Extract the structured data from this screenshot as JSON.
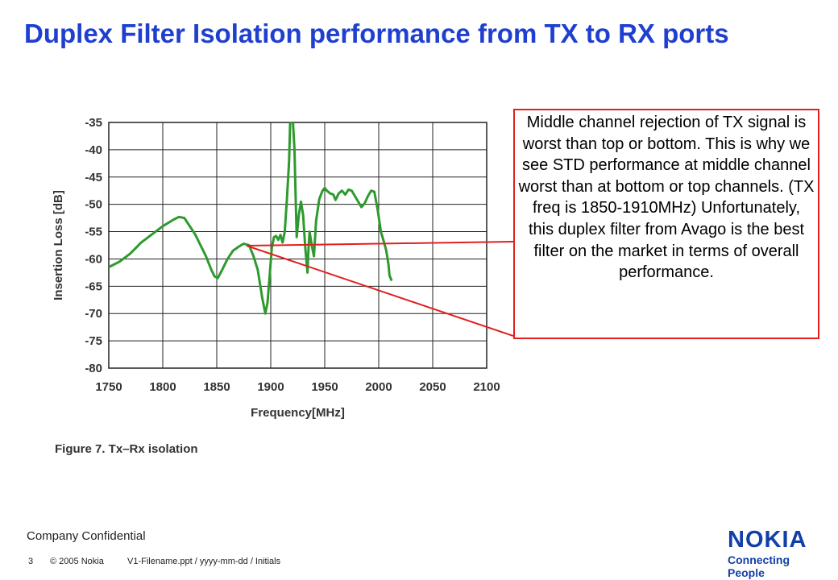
{
  "slide": {
    "title": "Duplex Filter Isolation performance from TX to RX ports",
    "callout": "Middle channel rejection of TX signal is worst than top or bottom. This is why we see STD performance at middle channel worst than at bottom or top channels. (TX freq is 1850-1910MHz) Unfortunately, this duplex filter from Avago is the best filter on the market in terms of overall performance."
  },
  "footer": {
    "confidential": "Company Confidential",
    "page_number": "3",
    "copyright": "© 2005  Nokia",
    "filename": "V1-Filename.ppt / yyyy-mm-dd / Initials"
  },
  "logo": {
    "brand": "NOKIA",
    "tagline": "Connecting People"
  },
  "colors": {
    "title": "#1f3fd1",
    "curve": "#2e9a2e",
    "callout_border": "#e21f1f",
    "brand": "#1340a7"
  },
  "chart_data": {
    "type": "line",
    "caption": "Figure 7. Tx–Rx isolation",
    "xlabel": "Frequency[MHz]",
    "ylabel": "Insertion Loss [dB]",
    "xlim": [
      1750,
      2100
    ],
    "ylim": [
      -80,
      -35
    ],
    "xticks": [
      1750,
      1800,
      1850,
      1900,
      1950,
      2000,
      2050,
      2100
    ],
    "yticks": [
      -35,
      -40,
      -45,
      -50,
      -55,
      -60,
      -65,
      -70,
      -75,
      -80
    ],
    "grid": true,
    "series": [
      {
        "x": [
          1750,
          1760,
          1770,
          1780,
          1790,
          1800,
          1810,
          1815,
          1820,
          1825,
          1830,
          1835,
          1840,
          1845,
          1848,
          1851,
          1855,
          1860,
          1865,
          1870,
          1875,
          1880,
          1884,
          1888,
          1892,
          1895,
          1897,
          1899,
          1901,
          1903,
          1905,
          1907,
          1909,
          1911,
          1913,
          1915,
          1917,
          1918,
          1920,
          1922,
          1923,
          1924,
          1926,
          1928,
          1930,
          1932,
          1934,
          1935,
          1936,
          1938,
          1940,
          1942,
          1945,
          1948,
          1950,
          1952,
          1955,
          1958,
          1960,
          1963,
          1966,
          1969,
          1972,
          1975,
          1978,
          1981,
          1984,
          1987,
          1990,
          1993,
          1996,
          1999,
          2002,
          2005,
          2007,
          2009,
          2010,
          2012
        ],
        "y": [
          -61.5,
          -60.5,
          -59,
          -57,
          -55.5,
          -54,
          -52.8,
          -52.3,
          -52.5,
          -54,
          -55.5,
          -57.5,
          -59.5,
          -62,
          -63.2,
          -63.5,
          -62,
          -60,
          -58.5,
          -57.8,
          -57.2,
          -57.5,
          -59.5,
          -62,
          -67,
          -70,
          -68,
          -63,
          -58,
          -56,
          -55.8,
          -56.5,
          -55.6,
          -57,
          -55,
          -49,
          -42,
          -35,
          -33,
          -40,
          -48,
          -56,
          -52,
          -49.5,
          -52,
          -58,
          -62.5,
          -58,
          -55,
          -57.5,
          -59.5,
          -53,
          -49,
          -47.5,
          -47,
          -47.5,
          -48,
          -48.2,
          -49.2,
          -48,
          -47.5,
          -48.2,
          -47.3,
          -47.5,
          -48.5,
          -49.5,
          -50.5,
          -49.8,
          -48.5,
          -47.5,
          -47.7,
          -51,
          -55,
          -57,
          -58.5,
          -61,
          -63,
          -64
        ]
      }
    ]
  }
}
